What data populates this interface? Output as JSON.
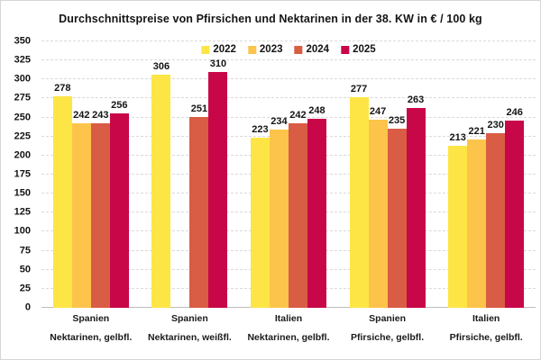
{
  "title": "Durchschnittspreise von Pfirsichen und Nektarinen in der 38. KW in € / 100 kg",
  "chart_data": {
    "type": "bar",
    "title": "Durchschnittspreise von Pfirsichen und Nektarinen in der 38. KW in € / 100 kg",
    "xlabel": "",
    "ylabel": "",
    "ylim": [
      0,
      350
    ],
    "ytick_step": 25,
    "grid": "horizontal-dashed",
    "legend_position": "top-center-inside",
    "categories": [
      {
        "line1": "Spanien",
        "line2": "Nektarinen, gelbfl."
      },
      {
        "line1": "Spanien",
        "line2": "Nektarinen, weißfl."
      },
      {
        "line1": "Italien",
        "line2": "Nektarinen, gelbfl."
      },
      {
        "line1": "Spanien",
        "line2": "Pfirsiche, gelbfl."
      },
      {
        "line1": "Italien",
        "line2": "Pfirsiche, gelbfl."
      }
    ],
    "series": [
      {
        "name": "2022",
        "color": "#FDE545",
        "values": [
          278,
          306,
          223,
          277,
          213
        ]
      },
      {
        "name": "2023",
        "color": "#FCC44A",
        "values": [
          242,
          null,
          234,
          247,
          221
        ]
      },
      {
        "name": "2024",
        "color": "#D95C44",
        "values": [
          243,
          251,
          242,
          235,
          230
        ]
      },
      {
        "name": "2025",
        "color": "#C80748",
        "values": [
          256,
          310,
          248,
          263,
          246
        ]
      }
    ]
  }
}
